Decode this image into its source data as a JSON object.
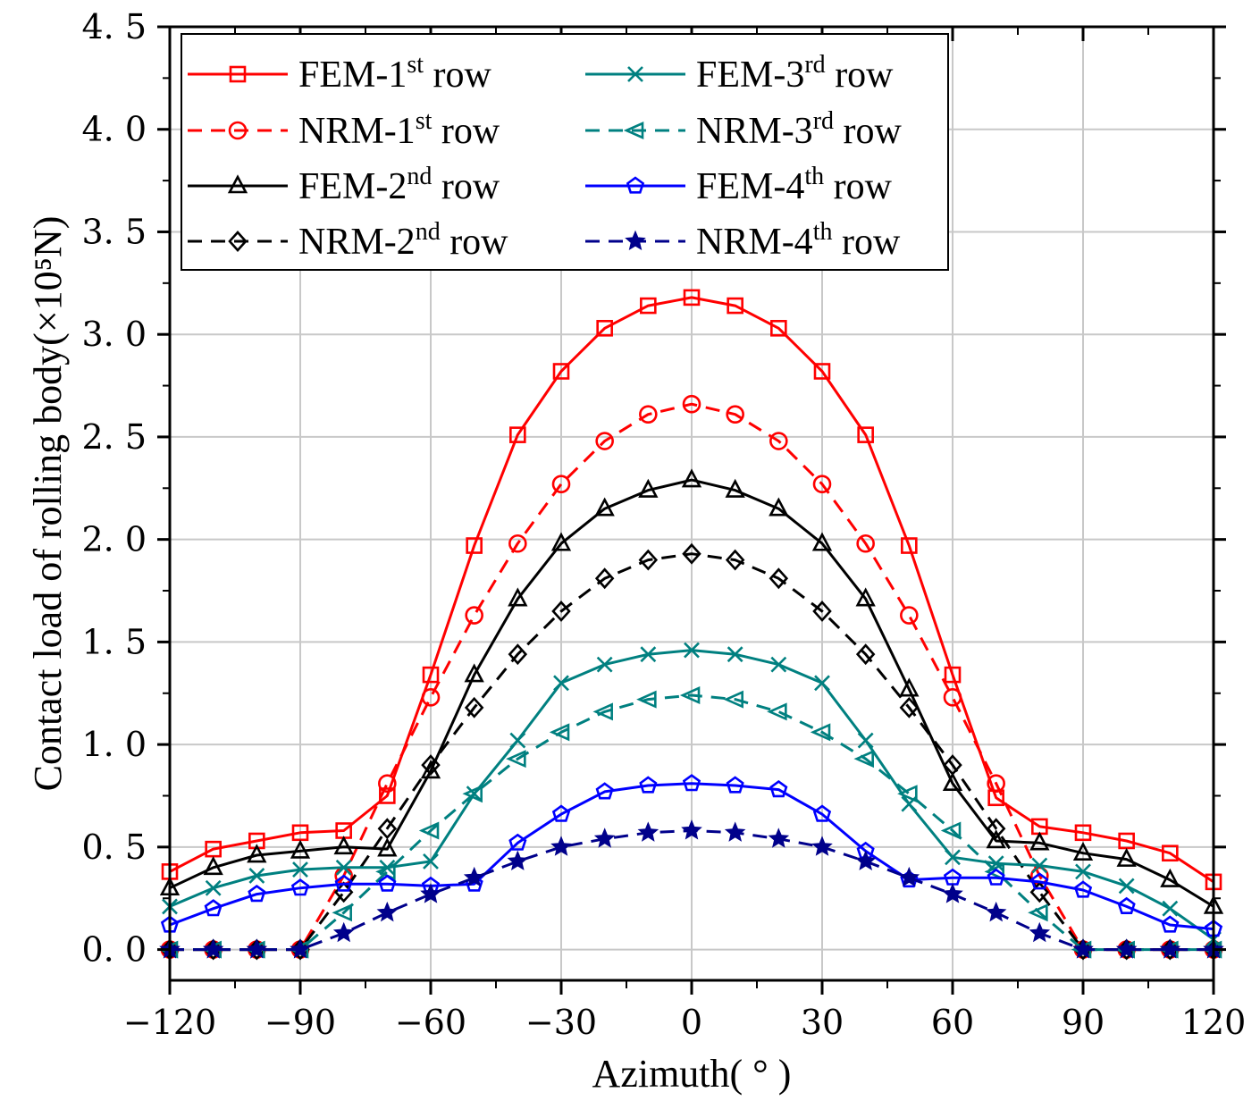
{
  "chart_data": {
    "type": "line",
    "xlabel": "Azimuth( ° )",
    "ylabel": "Contact load of rolling body(×10⁵N)",
    "xlim": [
      -120,
      120
    ],
    "ylim": [
      -0.15,
      4.5
    ],
    "xticks": [
      -120,
      -90,
      -60,
      -30,
      0,
      30,
      60,
      90,
      120
    ],
    "xtick_labels": [
      "−120",
      "−90",
      "−60",
      "−30",
      "0",
      "30",
      "60",
      "90",
      "120"
    ],
    "yticks": [
      0,
      0.5,
      1,
      1.5,
      2,
      2.5,
      3,
      3.5,
      4,
      4.5
    ],
    "ytick_labels": [
      "0. 0",
      "0. 5",
      "1. 0",
      "1. 5",
      "2. 0",
      "2. 5",
      "3. 0",
      "3. 5",
      "4. 0",
      "4. 5"
    ],
    "grid": true,
    "legend_position": "top-left",
    "x": [
      -120,
      -110,
      -100,
      -90,
      -80,
      -70,
      -60,
      -50,
      -40,
      -30,
      -20,
      -10,
      0,
      10,
      20,
      30,
      40,
      50,
      60,
      70,
      80,
      90,
      100,
      110,
      120
    ],
    "series": [
      {
        "name": "FEM-1st row",
        "legend_base": "FEM-1",
        "legend_sup": "st",
        "legend_tail": " row",
        "color": "#ff0000",
        "dash": "solid",
        "marker": "square",
        "values": [
          0.38,
          0.49,
          0.53,
          0.57,
          0.58,
          0.75,
          1.34,
          1.97,
          2.51,
          2.82,
          3.03,
          3.14,
          3.18,
          3.14,
          3.03,
          2.82,
          2.51,
          1.97,
          1.34,
          0.74,
          0.6,
          0.57,
          0.53,
          0.47,
          0.33
        ]
      },
      {
        "name": "NRM-1st row",
        "legend_base": "NRM-1",
        "legend_sup": "st",
        "legend_tail": " row",
        "color": "#ff0000",
        "dash": "dashed",
        "marker": "circle",
        "values": [
          0,
          0,
          0,
          0,
          0.36,
          0.81,
          1.23,
          1.63,
          1.98,
          2.27,
          2.48,
          2.61,
          2.66,
          2.61,
          2.48,
          2.27,
          1.98,
          1.63,
          1.23,
          0.81,
          0.36,
          0,
          0,
          0,
          0
        ]
      },
      {
        "name": "FEM-2nd row",
        "legend_base": "FEM-2",
        "legend_sup": "nd",
        "legend_tail": " row",
        "color": "#000000",
        "dash": "solid",
        "marker": "triangle",
        "values": [
          0.3,
          0.4,
          0.46,
          0.48,
          0.5,
          0.49,
          0.87,
          1.34,
          1.71,
          1.98,
          2.15,
          2.24,
          2.29,
          2.24,
          2.15,
          1.98,
          1.71,
          1.27,
          0.81,
          0.53,
          0.52,
          0.47,
          0.44,
          0.34,
          0.21
        ]
      },
      {
        "name": "NRM-2nd row",
        "legend_base": "NRM-2",
        "legend_sup": "nd",
        "legend_tail": " row",
        "color": "#000000",
        "dash": "dashed",
        "marker": "diamond",
        "values": [
          0,
          0,
          0,
          0,
          0.28,
          0.59,
          0.9,
          1.18,
          1.44,
          1.65,
          1.81,
          1.9,
          1.93,
          1.9,
          1.81,
          1.65,
          1.44,
          1.18,
          0.9,
          0.59,
          0.28,
          0,
          0,
          0,
          0
        ]
      },
      {
        "name": "FEM-3rd row",
        "legend_base": "FEM-3",
        "legend_sup": "rd",
        "legend_tail": " row",
        "color": "#008080",
        "dash": "solid",
        "marker": "x",
        "values": [
          0.21,
          0.3,
          0.36,
          0.39,
          0.4,
          0.4,
          0.43,
          0.76,
          1.02,
          1.3,
          1.39,
          1.44,
          1.46,
          1.44,
          1.39,
          1.3,
          1.02,
          0.71,
          0.45,
          0.42,
          0.41,
          0.38,
          0.31,
          0.2,
          0.05
        ]
      },
      {
        "name": "NRM-3rd row",
        "legend_base": "NRM-3",
        "legend_sup": "rd",
        "legend_tail": " row",
        "color": "#008080",
        "dash": "dashed",
        "marker": "tri-left",
        "values": [
          0,
          0,
          0,
          0,
          0.18,
          0.38,
          0.58,
          0.76,
          0.93,
          1.06,
          1.16,
          1.22,
          1.24,
          1.22,
          1.16,
          1.06,
          0.93,
          0.76,
          0.58,
          0.38,
          0.18,
          0,
          0,
          0,
          0
        ]
      },
      {
        "name": "FEM-4th row",
        "legend_base": "FEM-4",
        "legend_sup": "th",
        "legend_tail": " row",
        "color": "#0000ff",
        "dash": "solid",
        "marker": "pentagon",
        "values": [
          0.12,
          0.2,
          0.27,
          0.3,
          0.32,
          0.32,
          0.31,
          0.32,
          0.52,
          0.66,
          0.77,
          0.8,
          0.81,
          0.8,
          0.78,
          0.66,
          0.48,
          0.34,
          0.35,
          0.35,
          0.33,
          0.29,
          0.21,
          0.12,
          0.1
        ]
      },
      {
        "name": "NRM-4th row",
        "legend_base": "NRM-4",
        "legend_sup": "th",
        "legend_tail": " row",
        "color": "#00008b",
        "dash": "dashed",
        "marker": "star",
        "values": [
          0,
          0,
          0,
          0,
          0.08,
          0.18,
          0.27,
          0.35,
          0.43,
          0.5,
          0.54,
          0.57,
          0.58,
          0.57,
          0.54,
          0.5,
          0.43,
          0.35,
          0.27,
          0.18,
          0.08,
          0,
          0,
          0,
          0
        ]
      }
    ]
  }
}
